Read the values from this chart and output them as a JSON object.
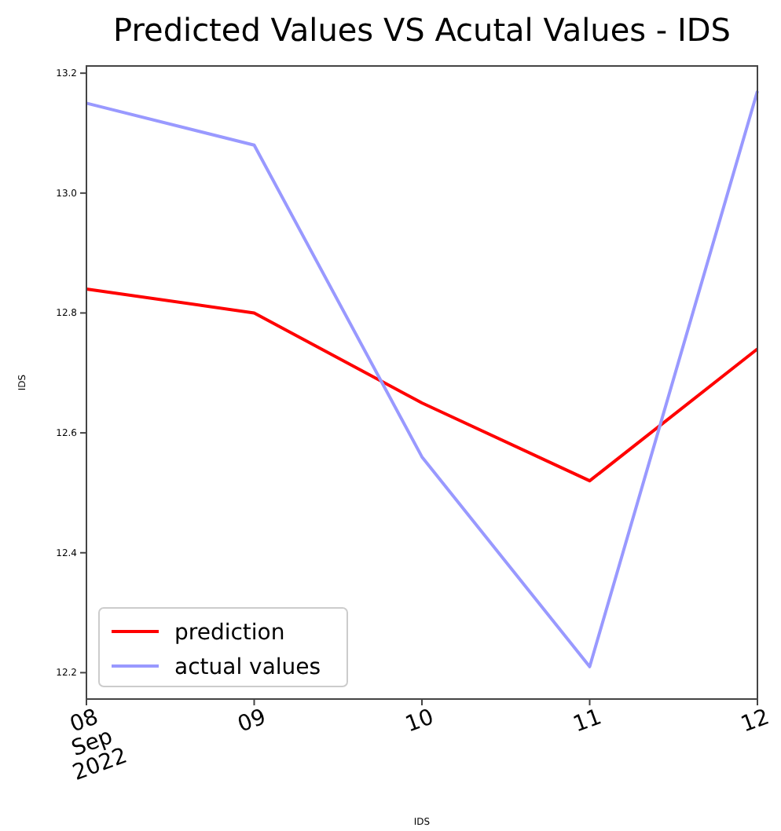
{
  "chart_data": {
    "type": "line",
    "title": "Predicted Values VS Acutal Values - IDS",
    "xlabel": "IDS",
    "ylabel": "IDS",
    "x": [
      "2022-09-08",
      "2022-09-09",
      "2022-09-10",
      "2022-09-11",
      "2022-09-12"
    ],
    "series": [
      {
        "name": "prediction",
        "color": "#ff0000",
        "values": [
          12.84,
          12.8,
          12.65,
          12.52,
          12.74
        ]
      },
      {
        "name": "actual values",
        "color": "#9999ff",
        "values": [
          13.15,
          13.08,
          12.56,
          12.21,
          13.17
        ]
      }
    ],
    "xlim": [
      "2022-09-08",
      "2022-09-12"
    ],
    "xticks": [
      {
        "value": "2022-09-08",
        "label": "08\nSep\n2022"
      },
      {
        "value": "2022-09-09",
        "label": "09"
      },
      {
        "value": "2022-09-10",
        "label": "10"
      },
      {
        "value": "2022-09-11",
        "label": "11"
      },
      {
        "value": "2022-09-12",
        "label": "12"
      }
    ],
    "ylim": [
      12.156,
      13.212
    ],
    "yticks": [
      12.2,
      12.4,
      12.6,
      12.8,
      {
        "value": 13,
        "label": "13.0"
      },
      13.2
    ],
    "grid": false,
    "legend": "bottom left",
    "line_style": "solid",
    "marker": "none"
  }
}
